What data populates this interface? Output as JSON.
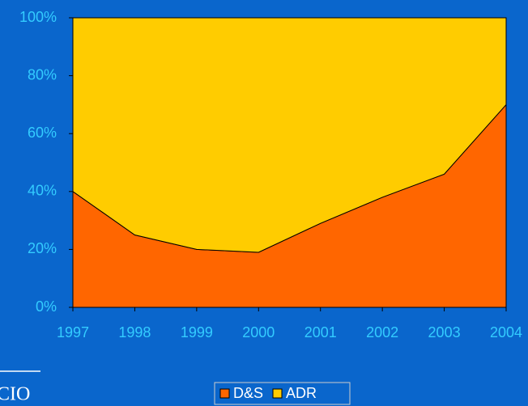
{
  "chart_data": {
    "type": "area",
    "stacked": true,
    "categories": [
      "1997",
      "1998",
      "1999",
      "2000",
      "2001",
      "2002",
      "2003",
      "2004"
    ],
    "series": [
      {
        "name": "D&S",
        "color": "#ff6600",
        "values": [
          40,
          25,
          20,
          19,
          29,
          38,
          46,
          70
        ]
      },
      {
        "name": "ADR",
        "color": "#ffcc00",
        "values": [
          60,
          75,
          80,
          81,
          71,
          62,
          54,
          30
        ]
      }
    ],
    "ylim": [
      0,
      100
    ],
    "yticks": [
      {
        "value": 0,
        "label": "0%"
      },
      {
        "value": 20,
        "label": "20%"
      },
      {
        "value": 40,
        "label": "40%"
      },
      {
        "value": 60,
        "label": "60%"
      },
      {
        "value": 80,
        "label": "80%"
      },
      {
        "value": 100,
        "label": "100%"
      }
    ],
    "grid": false,
    "legend": "bottom"
  },
  "footer": {
    "text": "CIO"
  }
}
